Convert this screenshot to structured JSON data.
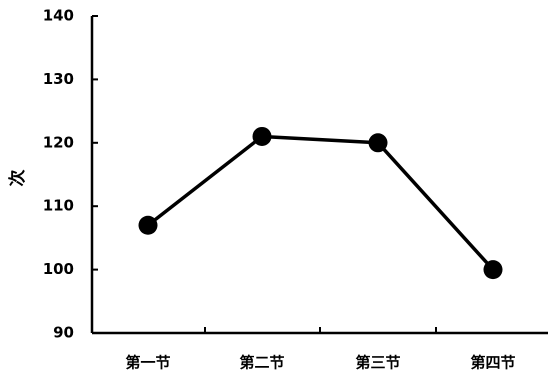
{
  "chart_data": {
    "type": "line",
    "title": "",
    "xlabel": "",
    "ylabel": "次",
    "categories": [
      "第一节",
      "第二节",
      "第三节",
      "第四节"
    ],
    "series": [
      {
        "values": [
          107,
          121,
          120,
          100
        ]
      }
    ],
    "ylim": [
      90,
      140
    ],
    "yticks": [
      90,
      100,
      110,
      120,
      130,
      140
    ],
    "grid": false,
    "legend": "none",
    "colors": {
      "line": "#000000",
      "marker": "#000000",
      "axis": "#000000"
    }
  }
}
